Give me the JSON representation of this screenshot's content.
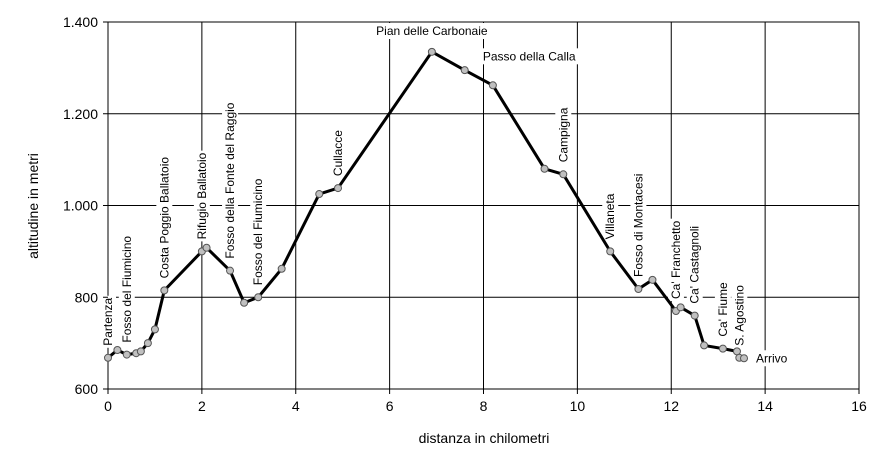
{
  "chart_data": {
    "type": "line",
    "xlabel": "distanza in chilometri",
    "ylabel": "altitudine  in metri",
    "xlim": [
      0,
      16
    ],
    "ylim": [
      600,
      1400
    ],
    "xticks": [
      0,
      2,
      4,
      6,
      8,
      10,
      12,
      14,
      16
    ],
    "xtick_labels": [
      "0",
      "2",
      "4",
      "6",
      "8",
      "10",
      "12",
      "14",
      "16"
    ],
    "yticks": [
      600,
      800,
      1000,
      1200,
      1400
    ],
    "ytick_labels": [
      "600",
      "800",
      "1.000",
      "1.200",
      "1.400"
    ],
    "grid": true,
    "series": [
      {
        "color": "#000000",
        "marker_color": "#c0c0c0",
        "points": [
          {
            "x": 0.0,
            "y": 668
          },
          {
            "x": 0.2,
            "y": 685
          },
          {
            "x": 0.4,
            "y": 675
          },
          {
            "x": 0.6,
            "y": 678
          },
          {
            "x": 0.7,
            "y": 682
          },
          {
            "x": 0.85,
            "y": 700
          },
          {
            "x": 1.0,
            "y": 730
          },
          {
            "x": 1.2,
            "y": 815
          },
          {
            "x": 2.0,
            "y": 900
          },
          {
            "x": 2.1,
            "y": 908
          },
          {
            "x": 2.6,
            "y": 858
          },
          {
            "x": 2.9,
            "y": 788
          },
          {
            "x": 3.2,
            "y": 800
          },
          {
            "x": 3.7,
            "y": 862
          },
          {
            "x": 4.5,
            "y": 1025
          },
          {
            "x": 4.9,
            "y": 1038
          },
          {
            "x": 6.9,
            "y": 1335
          },
          {
            "x": 7.6,
            "y": 1295
          },
          {
            "x": 8.2,
            "y": 1262
          },
          {
            "x": 9.3,
            "y": 1080
          },
          {
            "x": 9.7,
            "y": 1068
          },
          {
            "x": 10.7,
            "y": 900
          },
          {
            "x": 11.3,
            "y": 818
          },
          {
            "x": 11.6,
            "y": 838
          },
          {
            "x": 12.1,
            "y": 770
          },
          {
            "x": 12.2,
            "y": 778
          },
          {
            "x": 12.5,
            "y": 760
          },
          {
            "x": 12.7,
            "y": 695
          },
          {
            "x": 13.1,
            "y": 688
          },
          {
            "x": 13.4,
            "y": 682
          },
          {
            "x": 13.45,
            "y": 668
          },
          {
            "x": 13.55,
            "y": 667
          }
        ]
      }
    ],
    "labels": [
      {
        "text": "Partenza",
        "x": 0.0,
        "y": 668,
        "rotated": true
      },
      {
        "text": "Fosso del Fiumicino",
        "x": 0.4,
        "y": 675,
        "rotated": true
      },
      {
        "text": "Costa Poggio Ballatoio",
        "x": 1.2,
        "y": 815,
        "rotated": true
      },
      {
        "text": "Rifugio Ballatoio",
        "x": 2.0,
        "y": 900,
        "rotated": true
      },
      {
        "text": "Fosso della Fonte del Raggio",
        "x": 2.6,
        "y": 858,
        "rotated": true
      },
      {
        "text": "Fosso del Fiumicino",
        "x": 3.2,
        "y": 800,
        "rotated": true
      },
      {
        "text": "Cullacce",
        "x": 4.9,
        "y": 1038,
        "rotated": true
      },
      {
        "text": "Pian delle Carbonaie",
        "x": 6.9,
        "y": 1335,
        "rotated": false
      },
      {
        "text": "Passo della Calla",
        "x": 8.2,
        "y": 1262,
        "rotated": false
      },
      {
        "text": "Campigna",
        "x": 9.7,
        "y": 1068,
        "rotated": true
      },
      {
        "text": "Villaneta",
        "x": 10.7,
        "y": 900,
        "rotated": true
      },
      {
        "text": "Fosso di Montacesi",
        "x": 11.3,
        "y": 818,
        "rotated": true
      },
      {
        "text": "Ca' Franchetto",
        "x": 12.1,
        "y": 770,
        "rotated": true
      },
      {
        "text": "Ca' Castagnoli",
        "x": 12.5,
        "y": 760,
        "rotated": true
      },
      {
        "text": "Ca' Fiume",
        "x": 13.1,
        "y": 688,
        "rotated": true
      },
      {
        "text": "S. Agostino",
        "x": 13.45,
        "y": 668,
        "rotated": true
      },
      {
        "text": "Arrivo",
        "x": 13.55,
        "y": 667,
        "rotated": false
      }
    ]
  }
}
